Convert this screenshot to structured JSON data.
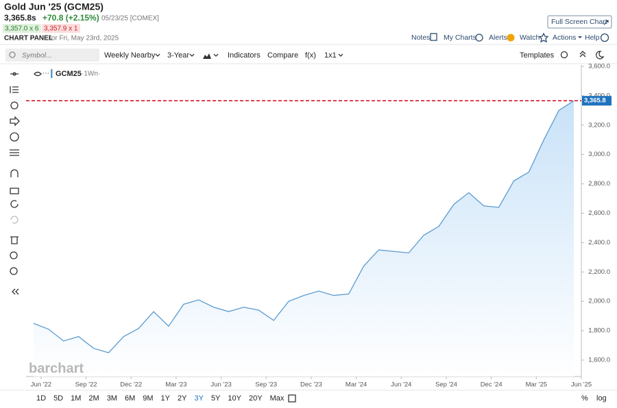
{
  "header": {
    "title": "Gold Jun '25 (GCM25)",
    "last": "3,365.8s",
    "change": "+70.8 (+2.15%)",
    "date_exchange": "05/23/25 [COMEX]",
    "bid": "3,357.0 x 6",
    "ask": "3,357.9 x 1",
    "full_screen": "Full Screen Chart",
    "panel_label": "CHART PANEL",
    "panel_date": "for Fri, May 23rd, 2025"
  },
  "actions": [
    "Notes",
    "My Charts",
    "Alerts",
    "Watch",
    "Actions",
    "Help"
  ],
  "toolbar": {
    "symbol_placeholder": "Symbol...",
    "items": [
      "Weekly Nearby",
      "3-Year",
      "Indicators",
      "Compare",
      "f(x)",
      "1x1"
    ],
    "templates": "Templates"
  },
  "chart_data": {
    "type": "area",
    "legend_interval": "·1Wn·",
    "watermark": "barchart",
    "x": [
      "2022-05",
      "2022-06",
      "2022-07",
      "2022-08",
      "2022-09",
      "2022-10",
      "2022-11",
      "2022-12",
      "2023-01",
      "2023-02",
      "2023-03",
      "2023-04",
      "2023-05",
      "2023-06",
      "2023-07",
      "2023-08",
      "2023-09",
      "2023-10",
      "2023-11",
      "2023-12",
      "2024-01",
      "2024-02",
      "2024-03",
      "2024-04",
      "2024-05",
      "2024-06",
      "2024-07",
      "2024-08",
      "2024-09",
      "2024-10",
      "2024-11",
      "2024-12",
      "2025-01",
      "2025-02",
      "2025-03",
      "2025-04",
      "2025-05"
    ],
    "series": [
      {
        "name": "GCM25",
        "color": "#5a9bd0",
        "values": [
          1850,
          1810,
          1730,
          1760,
          1680,
          1650,
          1760,
          1815,
          1930,
          1830,
          1980,
          2010,
          1960,
          1930,
          1960,
          1940,
          1870,
          2000,
          2040,
          2070,
          2040,
          2050,
          2240,
          2350,
          2340,
          2330,
          2450,
          2510,
          2660,
          2740,
          2650,
          2640,
          2820,
          2880,
          3100,
          3300,
          3365.8
        ]
      }
    ],
    "last_price": {
      "value": 3365.8,
      "label": "3,365.8"
    },
    "xlim": [
      "2022-05",
      "2025-06"
    ],
    "xticks": [
      {
        "value": "2022-06",
        "label": "Jun '22"
      },
      {
        "value": "2022-09",
        "label": "Sep '22"
      },
      {
        "value": "2022-12",
        "label": "Dec '22"
      },
      {
        "value": "2023-03",
        "label": "Mar '23"
      },
      {
        "value": "2023-06",
        "label": "Jun '23"
      },
      {
        "value": "2023-09",
        "label": "Sep '23"
      },
      {
        "value": "2023-12",
        "label": "Dec '23"
      },
      {
        "value": "2024-03",
        "label": "Mar '24"
      },
      {
        "value": "2024-06",
        "label": "Jun '24"
      },
      {
        "value": "2024-09",
        "label": "Sep '24"
      },
      {
        "value": "2024-12",
        "label": "Dec '24"
      },
      {
        "value": "2025-03",
        "label": "Mar '25"
      },
      {
        "value": "2025-06",
        "label": "Jun '25"
      }
    ],
    "ylim": [
      1488,
      3609
    ],
    "yticks": [
      {
        "value": 1600,
        "label": "1,600.0"
      },
      {
        "value": 1800,
        "label": "1,800.0"
      },
      {
        "value": 2000,
        "label": "2,000.0"
      },
      {
        "value": 2200,
        "label": "2,200.0"
      },
      {
        "value": 2400,
        "label": "2,400.0"
      },
      {
        "value": 2600,
        "label": "2,600.0"
      },
      {
        "value": 2800,
        "label": "2,800.0"
      },
      {
        "value": 3000,
        "label": "3,000.0"
      },
      {
        "value": 3200,
        "label": "3,200.0"
      },
      {
        "value": 3400,
        "label": "3,400.0"
      },
      {
        "value": 3600,
        "label": "3,600.0"
      }
    ],
    "grid": false
  },
  "range_buttons": [
    {
      "label": "1D",
      "active": false
    },
    {
      "label": "5D",
      "active": false
    },
    {
      "label": "1M",
      "active": false
    },
    {
      "label": "2M",
      "active": false
    },
    {
      "label": "3M",
      "active": false
    },
    {
      "label": "6M",
      "active": false
    },
    {
      "label": "9M",
      "active": false
    },
    {
      "label": "1Y",
      "active": false
    },
    {
      "label": "2Y",
      "active": false
    },
    {
      "label": "3Y",
      "active": true
    },
    {
      "label": "5Y",
      "active": false
    },
    {
      "label": "10Y",
      "active": false
    },
    {
      "label": "20Y",
      "active": false
    },
    {
      "label": "Max",
      "active": false
    }
  ],
  "scale_options": [
    "%",
    "log"
  ]
}
